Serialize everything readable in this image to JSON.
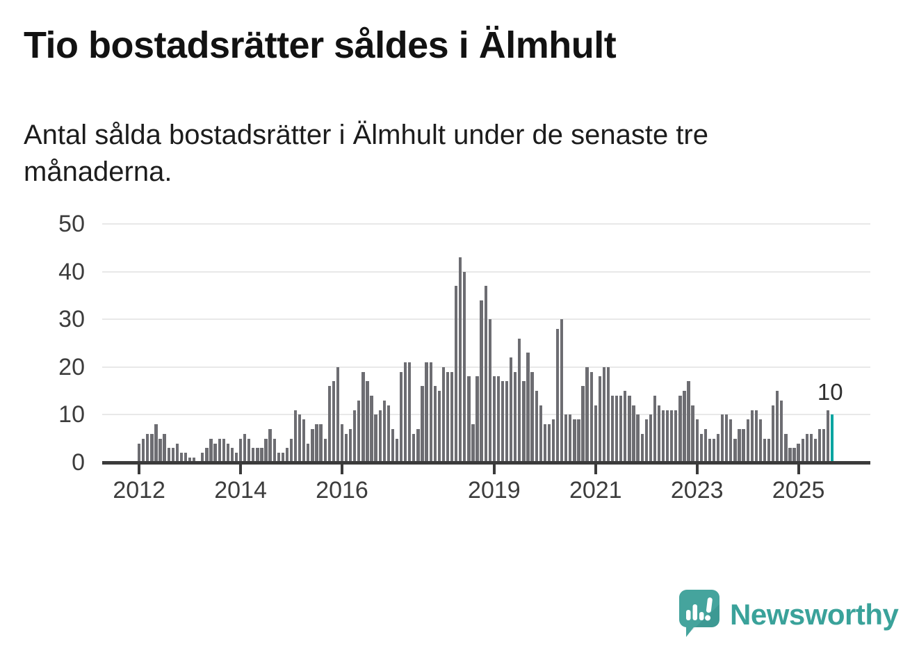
{
  "header": {
    "title": "Tio bostadsrätter såldes i Älmhult",
    "subtitle": "Antal sålda bostadsrätter i Älmhult under de senaste tre månaderna."
  },
  "chart_data": {
    "type": "bar",
    "title": "Tio bostadsrätter såldes i Älmhult",
    "subtitle": "Antal sålda bostadsrätter i Älmhult under de senaste tre månaderna.",
    "x_start": "2012-01",
    "x_interval": "1 month",
    "values": [
      4,
      5,
      6,
      6,
      8,
      5,
      6,
      3,
      3,
      4,
      2,
      2,
      1,
      1,
      0,
      2,
      3,
      5,
      4,
      5,
      5,
      4,
      3,
      2,
      5,
      6,
      5,
      3,
      3,
      3,
      5,
      7,
      5,
      2,
      2,
      3,
      5,
      11,
      10,
      9,
      4,
      7,
      8,
      8,
      5,
      16,
      17,
      20,
      8,
      6,
      7,
      11,
      13,
      19,
      17,
      14,
      10,
      11,
      13,
      12,
      7,
      5,
      19,
      21,
      21,
      6,
      7,
      16,
      21,
      21,
      16,
      15,
      20,
      19,
      19,
      37,
      43,
      40,
      18,
      8,
      18,
      34,
      37,
      30,
      18,
      18,
      17,
      17,
      22,
      19,
      26,
      17,
      23,
      19,
      15,
      12,
      8,
      8,
      9,
      28,
      30,
      10,
      10,
      9,
      9,
      16,
      20,
      19,
      12,
      18,
      20,
      20,
      14,
      14,
      14,
      15,
      14,
      12,
      10,
      6,
      9,
      10,
      14,
      12,
      11,
      11,
      11,
      11,
      14,
      15,
      17,
      12,
      9,
      6,
      7,
      5,
      5,
      6,
      10,
      10,
      9,
      5,
      7,
      7,
      9,
      11,
      11,
      9,
      5,
      5,
      12,
      15,
      13,
      6,
      3,
      3,
      4,
      5,
      6,
      6,
      5,
      7,
      7,
      11,
      10
    ],
    "highlight_last": true,
    "last_value_label": "10",
    "y_ticks": [
      0,
      10,
      20,
      30,
      40,
      50
    ],
    "ylim": [
      0,
      50
    ],
    "x_tick_years": [
      2012,
      2014,
      2016,
      2019,
      2021,
      2023,
      2025
    ],
    "grid": true,
    "legend": "none",
    "bar_color": "#6d6d72",
    "highlight_color": "#00a5a1"
  },
  "annotation": {
    "last_value": "10"
  },
  "footer": {
    "brand": "Newsworthy"
  },
  "colors": {
    "bar": "#6d6d72",
    "highlight": "#00a5a1",
    "gridline": "#e8e8e8",
    "axis": "#3b3b3b",
    "logo_teal": "#45a49d",
    "wordmark_teal": "#3aa29a"
  }
}
